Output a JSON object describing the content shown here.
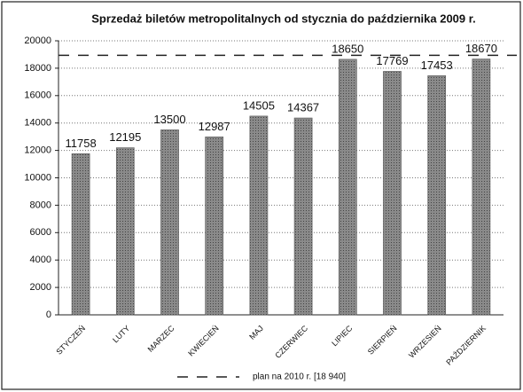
{
  "chart_data": {
    "type": "bar",
    "title": "Sprzedaż biletów metropolitalnych od stycznia do października 2009 r.",
    "categories": [
      "STYCZEŃ",
      "LUTY",
      "MARZEC",
      "KWIECIEŃ",
      "MAJ",
      "CZERWIEC",
      "LIPIEC",
      "SIERPIEŃ",
      "WRZESIEŃ",
      "PAŹDZIERNIK"
    ],
    "values": [
      11758,
      12195,
      13500,
      12987,
      14505,
      14367,
      18650,
      17769,
      17453,
      18670
    ],
    "color": "#8a8a8a",
    "ylim": [
      0,
      20000
    ],
    "yticks": [
      0,
      2000,
      4000,
      6000,
      8000,
      10000,
      12000,
      14000,
      16000,
      18000,
      20000
    ],
    "grid": true,
    "plan": {
      "label": "plan na 2010 r. [18 940]",
      "value": 18940
    }
  }
}
